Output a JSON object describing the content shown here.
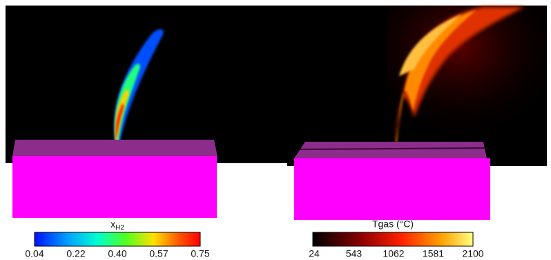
{
  "panels": [
    {
      "colorbar": {
        "label": {
          "base": "x",
          "sub": "H2"
        },
        "ticks": [
          "0.04",
          "0.22",
          "0.40",
          "0.57",
          "0.75"
        ]
      }
    },
    {
      "colorbar": {
        "label": "Tgas (°C)",
        "ticks": [
          "24",
          "543",
          "1062",
          "1581",
          "2100"
        ]
      }
    }
  ]
}
